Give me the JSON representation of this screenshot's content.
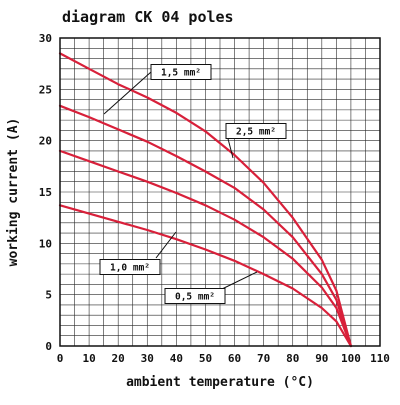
{
  "chart_data": {
    "type": "line",
    "title": "diagram CK 04 poles",
    "xlabel": "ambient temperature (°C)",
    "ylabel": "working current (A)",
    "xlim": [
      0,
      110
    ],
    "ylim": [
      0,
      30
    ],
    "x_ticks": [
      "0",
      "10",
      "20",
      "30",
      "40",
      "50",
      "60",
      "70",
      "80",
      "90",
      "100",
      "110"
    ],
    "y_ticks": [
      "0",
      "5",
      "10",
      "15",
      "20",
      "25",
      "30"
    ],
    "grid": true,
    "series": [
      {
        "name": "2,5 mm²",
        "color": "#d8203a",
        "x": [
          0,
          10,
          20,
          30,
          40,
          50,
          60,
          70,
          80,
          90,
          95,
          100
        ],
        "y": [
          28.5,
          27.0,
          25.5,
          24.2,
          22.7,
          20.9,
          18.6,
          15.9,
          12.5,
          8.4,
          5.4,
          0
        ]
      },
      {
        "name": "1,5 mm²",
        "color": "#d8203a",
        "x": [
          0,
          10,
          20,
          30,
          40,
          50,
          60,
          70,
          80,
          90,
          95,
          100
        ],
        "y": [
          23.4,
          22.3,
          21.1,
          19.9,
          18.5,
          17.0,
          15.4,
          13.3,
          10.6,
          7.0,
          4.5,
          0
        ]
      },
      {
        "name": "1,0 mm²",
        "color": "#d8203a",
        "x": [
          0,
          10,
          20,
          30,
          40,
          50,
          60,
          70,
          80,
          90,
          95,
          100
        ],
        "y": [
          19.0,
          18.0,
          17.0,
          16.0,
          14.9,
          13.7,
          12.3,
          10.6,
          8.5,
          5.7,
          3.7,
          0
        ]
      },
      {
        "name": "0,5 mm²",
        "color": "#d8203a",
        "x": [
          0,
          10,
          20,
          30,
          40,
          50,
          60,
          70,
          80,
          90,
          95,
          100
        ],
        "y": [
          13.7,
          12.9,
          12.1,
          11.3,
          10.4,
          9.4,
          8.3,
          7.0,
          5.6,
          3.7,
          2.4,
          0
        ]
      }
    ],
    "callouts": [
      {
        "label": "1,5 mm²",
        "text_at": [
          37,
          21.9
        ],
        "point_to": [
          22,
          23.2
        ]
      },
      {
        "label": "2,5 mm²",
        "text_at": [
          58,
          23.0
        ],
        "point_to": [
          73,
          25.1
        ]
      },
      {
        "label": "1,0 mm²",
        "text_at": [
          0,
          2.0
        ],
        "point_to": [
          0,
          1.1
        ]
      },
      {
        "label": "0,5 mm²",
        "text_at": [
          0,
          2.0
        ],
        "point_to": [
          0,
          1.1
        ]
      }
    ]
  }
}
